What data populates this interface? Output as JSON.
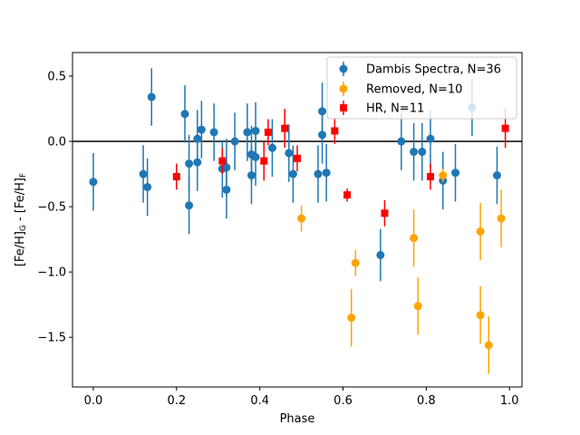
{
  "chart_data": {
    "type": "scatter",
    "title": "",
    "xlabel": "Phase",
    "ylabel": {
      "base": "[Fe/H]",
      "sub1": "G",
      "mid": " - [Fe/H]",
      "sub2": "F"
    },
    "xlim": [
      -0.05,
      1.03
    ],
    "ylim": [
      -1.88,
      0.68
    ],
    "xticks": [
      0.0,
      0.2,
      0.4,
      0.6,
      0.8,
      1.0
    ],
    "xtick_labels": [
      "0.0",
      "0.2",
      "0.4",
      "0.6",
      "0.8",
      "1.0"
    ],
    "yticks": [
      0.5,
      0.0,
      -0.5,
      -1.0,
      -1.5
    ],
    "ytick_labels": [
      "0.5",
      "0.0",
      "−0.5",
      "−1.0",
      "−1.5"
    ],
    "hline": 0.0,
    "legend": {
      "position": "upper right"
    },
    "series": [
      {
        "name": "Dambis Spectra, N=36",
        "color": "#1f77b4",
        "marker": "circle",
        "points": [
          {
            "x": 0.0,
            "y": -0.31,
            "err": 0.22
          },
          {
            "x": 0.12,
            "y": -0.25,
            "err": 0.22
          },
          {
            "x": 0.13,
            "y": -0.35,
            "err": 0.22
          },
          {
            "x": 0.14,
            "y": 0.34,
            "err": 0.22
          },
          {
            "x": 0.22,
            "y": 0.21,
            "err": 0.22
          },
          {
            "x": 0.23,
            "y": -0.17,
            "err": 0.22
          },
          {
            "x": 0.23,
            "y": -0.49,
            "err": 0.22
          },
          {
            "x": 0.25,
            "y": 0.02,
            "err": 0.22
          },
          {
            "x": 0.25,
            "y": -0.16,
            "err": 0.22
          },
          {
            "x": 0.26,
            "y": 0.09,
            "err": 0.22
          },
          {
            "x": 0.29,
            "y": 0.07,
            "err": 0.22
          },
          {
            "x": 0.31,
            "y": -0.21,
            "err": 0.22
          },
          {
            "x": 0.32,
            "y": -0.2,
            "err": 0.22
          },
          {
            "x": 0.32,
            "y": -0.37,
            "err": 0.22
          },
          {
            "x": 0.34,
            "y": 0.0,
            "err": 0.22
          },
          {
            "x": 0.37,
            "y": 0.07,
            "err": 0.22
          },
          {
            "x": 0.38,
            "y": -0.1,
            "err": 0.22
          },
          {
            "x": 0.38,
            "y": -0.26,
            "err": 0.22
          },
          {
            "x": 0.39,
            "y": 0.08,
            "err": 0.22
          },
          {
            "x": 0.39,
            "y": -0.12,
            "err": 0.22
          },
          {
            "x": 0.43,
            "y": -0.05,
            "err": 0.22
          },
          {
            "x": 0.47,
            "y": -0.09,
            "err": 0.22
          },
          {
            "x": 0.48,
            "y": -0.25,
            "err": 0.22
          },
          {
            "x": 0.54,
            "y": -0.25,
            "err": 0.22
          },
          {
            "x": 0.55,
            "y": 0.23,
            "err": 0.22
          },
          {
            "x": 0.55,
            "y": 0.05,
            "err": 0.22
          },
          {
            "x": 0.56,
            "y": -0.24,
            "err": 0.22
          },
          {
            "x": 0.69,
            "y": -0.87,
            "err": 0.2
          },
          {
            "x": 0.74,
            "y": 0.0,
            "err": 0.22
          },
          {
            "x": 0.77,
            "y": -0.08,
            "err": 0.22
          },
          {
            "x": 0.79,
            "y": -0.08,
            "err": 0.22
          },
          {
            "x": 0.81,
            "y": 0.02,
            "err": 0.22
          },
          {
            "x": 0.84,
            "y": -0.3,
            "err": 0.22
          },
          {
            "x": 0.87,
            "y": -0.24,
            "err": 0.22
          },
          {
            "x": 0.91,
            "y": 0.26,
            "err": 0.22
          },
          {
            "x": 0.97,
            "y": -0.26,
            "err": 0.22
          }
        ]
      },
      {
        "name": "Removed, N=10",
        "color": "#ffa500",
        "marker": "circle",
        "points": [
          {
            "x": 0.5,
            "y": -0.59,
            "err": 0.1
          },
          {
            "x": 0.62,
            "y": -1.35,
            "err": 0.22
          },
          {
            "x": 0.63,
            "y": -0.93,
            "err": 0.1
          },
          {
            "x": 0.77,
            "y": -0.74,
            "err": 0.22
          },
          {
            "x": 0.78,
            "y": -1.26,
            "err": 0.22
          },
          {
            "x": 0.84,
            "y": -0.26,
            "err": 0.05
          },
          {
            "x": 0.93,
            "y": -0.69,
            "err": 0.22
          },
          {
            "x": 0.93,
            "y": -1.33,
            "err": 0.22
          },
          {
            "x": 0.95,
            "y": -1.56,
            "err": 0.22
          },
          {
            "x": 0.98,
            "y": -0.59,
            "err": 0.22
          }
        ]
      },
      {
        "name": "HR, N=11",
        "color": "#ff0000",
        "marker": "square",
        "points": [
          {
            "x": 0.2,
            "y": -0.27,
            "err": 0.1
          },
          {
            "x": 0.31,
            "y": -0.15,
            "err": 0.1
          },
          {
            "x": 0.41,
            "y": -0.15,
            "err": 0.15
          },
          {
            "x": 0.42,
            "y": 0.07,
            "err": 0.1
          },
          {
            "x": 0.46,
            "y": 0.1,
            "err": 0.15
          },
          {
            "x": 0.49,
            "y": -0.13,
            "err": 0.1
          },
          {
            "x": 0.58,
            "y": 0.08,
            "err": 0.1
          },
          {
            "x": 0.61,
            "y": -0.41,
            "err": 0.05
          },
          {
            "x": 0.7,
            "y": -0.55,
            "err": 0.1
          },
          {
            "x": 0.81,
            "y": -0.27,
            "err": 0.1
          },
          {
            "x": 0.99,
            "y": 0.1,
            "err": 0.15
          }
        ]
      }
    ]
  }
}
